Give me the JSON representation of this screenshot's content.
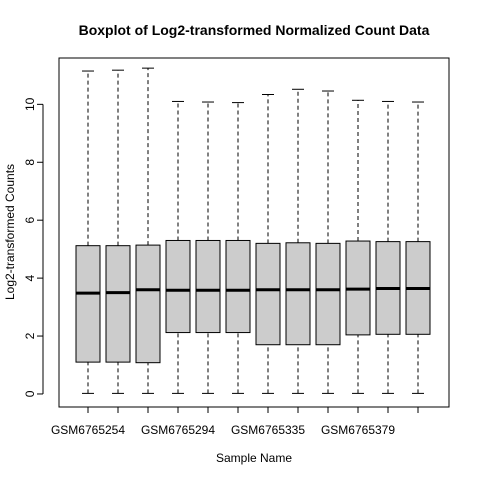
{
  "chart_data": {
    "type": "boxplot",
    "title": "Boxplot of Log2-transformed Normalized Count Data",
    "xlabel": "Sample Name",
    "ylabel": "Log2-transformed Counts",
    "ylim": [
      -0.45,
      11.6
    ],
    "yticks": [
      0,
      2,
      4,
      6,
      8,
      10
    ],
    "grid": false,
    "legend": "none",
    "box_color": "#cccccc",
    "categories": [
      "GSM6765254",
      "",
      "",
      "GSM6765294",
      "",
      "",
      "GSM6765335",
      "",
      "",
      "GSM6765379",
      "",
      ""
    ],
    "boxes": [
      {
        "min": 0.02,
        "q1": 1.1,
        "median": 3.48,
        "q3": 5.12,
        "max": 11.15
      },
      {
        "min": 0.02,
        "q1": 1.1,
        "median": 3.5,
        "q3": 5.12,
        "max": 11.18
      },
      {
        "min": 0.02,
        "q1": 1.08,
        "median": 3.6,
        "q3": 5.14,
        "max": 11.25
      },
      {
        "min": 0.02,
        "q1": 2.12,
        "median": 3.58,
        "q3": 5.3,
        "max": 10.1
      },
      {
        "min": 0.02,
        "q1": 2.12,
        "median": 3.58,
        "q3": 5.3,
        "max": 10.08
      },
      {
        "min": 0.02,
        "q1": 2.12,
        "median": 3.58,
        "q3": 5.3,
        "max": 10.06
      },
      {
        "min": 0.02,
        "q1": 1.7,
        "median": 3.6,
        "q3": 5.2,
        "max": 10.34
      },
      {
        "min": 0.02,
        "q1": 1.7,
        "median": 3.6,
        "q3": 5.22,
        "max": 10.52
      },
      {
        "min": 0.02,
        "q1": 1.7,
        "median": 3.6,
        "q3": 5.2,
        "max": 10.46
      },
      {
        "min": 0.02,
        "q1": 2.04,
        "median": 3.62,
        "q3": 5.28,
        "max": 10.14
      },
      {
        "min": 0.02,
        "q1": 2.06,
        "median": 3.64,
        "q3": 5.26,
        "max": 10.1
      },
      {
        "min": 0.02,
        "q1": 2.06,
        "median": 3.64,
        "q3": 5.26,
        "max": 10.08
      }
    ]
  }
}
